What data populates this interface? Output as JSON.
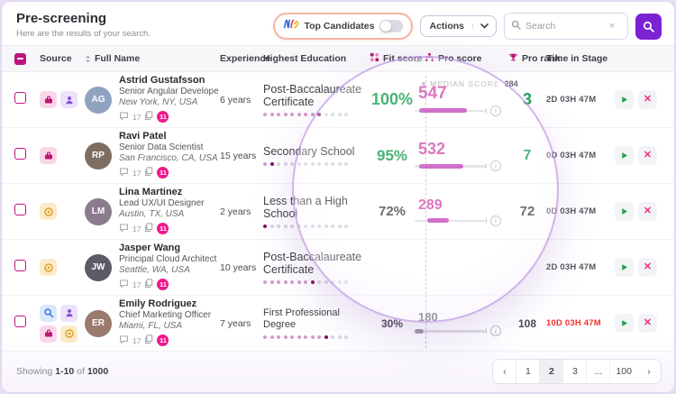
{
  "page": {
    "title": "Pre-screening",
    "subtitle": "Here are the results of your search."
  },
  "toolbar": {
    "top_candidates_label": "Top Candidates",
    "top_candidates_toggle_on": false,
    "actions_label": "Actions",
    "search_placeholder": "Search"
  },
  "table": {
    "columns": [
      "Source",
      "Full Name",
      "Experience",
      "Highest Education",
      "Fit score",
      "Pro score",
      "Pro rank",
      "Time in Stage"
    ],
    "median_label": "MEDIAN SCORE",
    "median_value": "284",
    "rows": [
      {
        "name": "Astrid Gustafsson",
        "role": "Senior Angular Develope",
        "location": "New York, NY, USA",
        "sources": [
          "briefcase",
          "person"
        ],
        "chat_count": "17",
        "badge_count": "11",
        "experience": "6 years",
        "education": "Post-Baccalaureate Certificate",
        "education_level": 9,
        "fit_score": "100%",
        "fit_positive": true,
        "pro_score": "547",
        "bar_start": 6,
        "bar_end": 72,
        "bar_muted": false,
        "pro_rank": "3",
        "rank_positive": true,
        "time_in_stage": "2D 03H 47M",
        "time_alert": false
      },
      {
        "name": "Ravi Patel",
        "role": "Senior Data Scientist",
        "location": "San Francisco, CA, USA",
        "sources": [
          "briefcase"
        ],
        "chat_count": "17",
        "badge_count": "11",
        "experience": "15 years",
        "education": "Secondary School",
        "education_level": 2,
        "fit_score": "95%",
        "fit_positive": true,
        "pro_score": "532",
        "bar_start": 6,
        "bar_end": 68,
        "bar_muted": false,
        "pro_rank": "7",
        "rank_positive": true,
        "time_in_stage": "0D 03H 47M",
        "time_alert": false
      },
      {
        "name": "Lina Martinez",
        "role": "Lead UX/UI Designer",
        "location": "Austin, TX, USA",
        "sources": [
          "coin"
        ],
        "chat_count": "17",
        "badge_count": "11",
        "experience": "2 years",
        "education": "Less than a High School",
        "education_level": 1,
        "fit_score": "72%",
        "fit_positive": false,
        "pro_score": "289",
        "bar_start": 18,
        "bar_end": 48,
        "bar_muted": false,
        "pro_rank": "72",
        "rank_positive": false,
        "time_in_stage": "0D 03H 47M",
        "time_alert": false
      },
      {
        "name": "Jasper Wang",
        "role": "Principal Cloud Architect",
        "location": "Seattle, WA, USA",
        "sources": [
          "coin"
        ],
        "chat_count": "17",
        "badge_count": "11",
        "experience": "10 years",
        "education": "Post-Baccalaureate Certificate",
        "education_level": 8,
        "fit_score": "",
        "fit_positive": false,
        "pro_score": "",
        "bar_start": 0,
        "bar_end": 0,
        "bar_muted": false,
        "pro_rank": "",
        "rank_positive": false,
        "time_in_stage": "2D 03H 47M",
        "time_alert": false
      },
      {
        "name": "Emily Rodriguez",
        "role": "Chief Marketing Officer",
        "location": "Miami, FL, USA",
        "sources": [
          "search",
          "person",
          "briefcase",
          "coin"
        ],
        "chat_count": "17",
        "badge_count": "11",
        "experience": "7 years",
        "education": "First Professional Degree",
        "education_level": 10,
        "fit_score": "30%",
        "fit_positive": false,
        "pro_score": "180",
        "bar_start": 0,
        "bar_end": 13,
        "bar_muted": true,
        "pro_rank": "108",
        "rank_positive": false,
        "time_in_stage": "10D 03H 47M",
        "time_alert": true
      }
    ]
  },
  "footer": {
    "showing_prefix": "Showing",
    "range": "1-10",
    "of_label": "of",
    "total": "1000",
    "pages": [
      "1",
      "2",
      "3",
      "...",
      "100"
    ],
    "current_page": "2"
  },
  "colors": {
    "accent_magenta": "#BE1483",
    "badge_pink": "#F0168C",
    "bar_fill": "#C750C0",
    "positive_green": "#1FA356",
    "alert_red": "#F43030",
    "search_button_purple": "#7B22D3",
    "lens_border": "#B284DE",
    "pill_border": "#F6B3A6"
  }
}
